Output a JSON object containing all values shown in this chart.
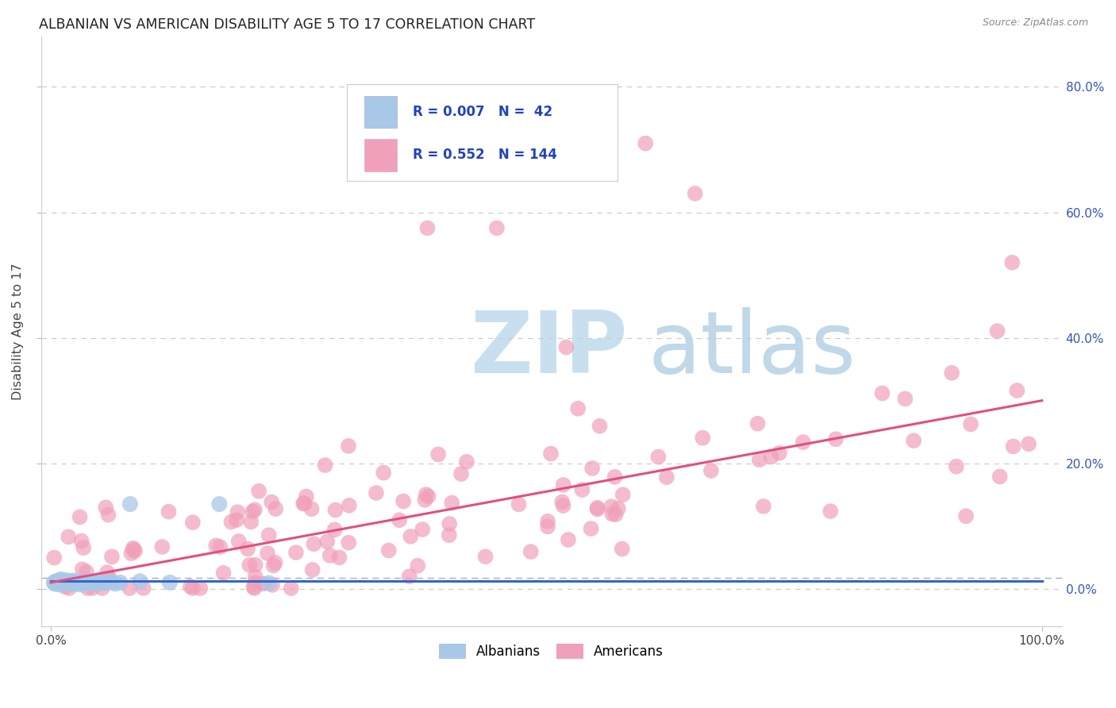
{
  "title": "ALBANIAN VS AMERICAN DISABILITY AGE 5 TO 17 CORRELATION CHART",
  "source": "Source: ZipAtlas.com",
  "ylabel": "Disability Age 5 to 17",
  "xlim": [
    -0.01,
    1.02
  ],
  "ylim": [
    -0.06,
    0.88
  ],
  "xtick_labels": [
    "0.0%",
    "100.0%"
  ],
  "ytick_positions": [
    0.0,
    0.2,
    0.4,
    0.6,
    0.8
  ],
  "ytick_labels": [
    "0.0%",
    "20.0%",
    "40.0%",
    "60.0%",
    "80.0%"
  ],
  "albanian_R": "0.007",
  "albanian_N": "42",
  "american_R": "0.552",
  "american_N": "144",
  "albanian_color": "#a8c8e8",
  "american_color": "#f0a0b8",
  "albanian_line_color": "#3366cc",
  "american_line_color": "#e05080",
  "legend_R_color": "#2244bb",
  "grid_color": "#cccccc",
  "ref_line_color": "#aaaacc",
  "watermark_ZIP_color": "#c8dff0",
  "watermark_atlas_color": "#c0d8e8",
  "background_color": "#ffffff",
  "albanian_line_y0": 0.012,
  "albanian_line_y1": 0.012,
  "american_line_y0": 0.01,
  "american_line_y1": 0.3,
  "ref_line_y": 0.018
}
